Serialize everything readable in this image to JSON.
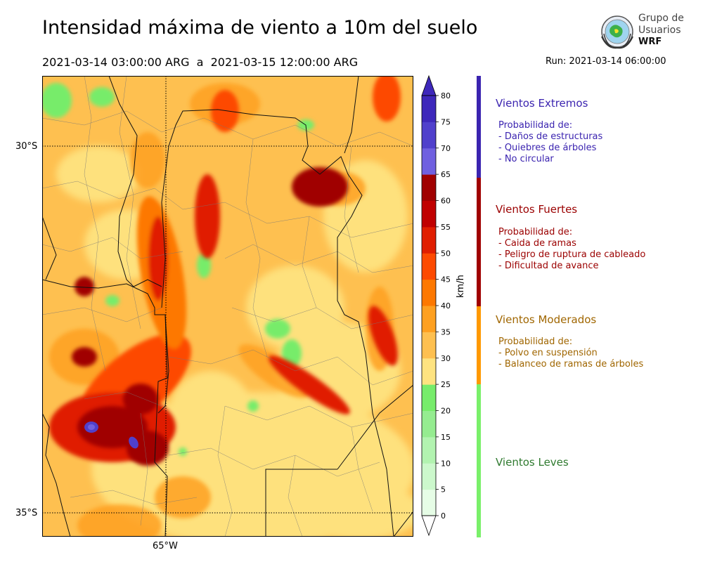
{
  "header": {
    "title": "Intensidad máxima de viento a 10m del suelo",
    "period": "2021-03-14 03:00:00 ARG  a  2021-03-15 12:00:00 ARG",
    "run": "Run: 2021-03-14 06:00:00"
  },
  "logo": {
    "line1": "Grupo de",
    "line2": "Usuarios",
    "line3": "WRF"
  },
  "map": {
    "lat_labels": [
      "30°S",
      "35°S"
    ],
    "lon_labels": [
      "65°W"
    ]
  },
  "colorbar": {
    "unit": "km/h",
    "levels": [
      0,
      5,
      10,
      15,
      20,
      25,
      30,
      35,
      40,
      45,
      50,
      55,
      60,
      65,
      70,
      75,
      80
    ],
    "tick_labels": [
      "0",
      "5",
      "10",
      "15",
      "20",
      "25",
      "30",
      "35",
      "40",
      "45",
      "50",
      "55",
      "60",
      "65",
      "70",
      "75",
      "80"
    ],
    "colors": [
      "#e6fde6",
      "#ccf8cc",
      "#b2f3b0",
      "#95ec90",
      "#77ec6b",
      "#fee380",
      "#fec050",
      "#fea020",
      "#fd7800",
      "#fd4a00",
      "#e01e00",
      "#c00000",
      "#a00000",
      "#7060e0",
      "#5040cc",
      "#3e28bb"
    ]
  },
  "categories": [
    {
      "title": "Vientos Extremos",
      "color": "#3b24b0",
      "bar_color": "#3b24b0",
      "lines": [
        "Probabilidad de:",
        "- Daños de estructuras",
        "- Quiebres de árboles",
        "- No circular"
      ]
    },
    {
      "title": "Vientos Fuertes",
      "color": "#9b0000",
      "bar_color": "#a00000",
      "lines": [
        "Probabilidad de:",
        "- Caida de ramas",
        "- Peligro de ruptura de cableado",
        "- Dificultad de avance"
      ]
    },
    {
      "title": "Vientos Moderados",
      "color": "#a06600",
      "bar_color": "#ff9900",
      "lines": [
        "Probabilidad de:",
        "- Polvo en suspensión",
        "- Balanceo de ramas de árboles"
      ]
    },
    {
      "title": "Vientos Leves",
      "color": "#2f7a2f",
      "bar_color": "#7af06a",
      "lines": []
    }
  ]
}
